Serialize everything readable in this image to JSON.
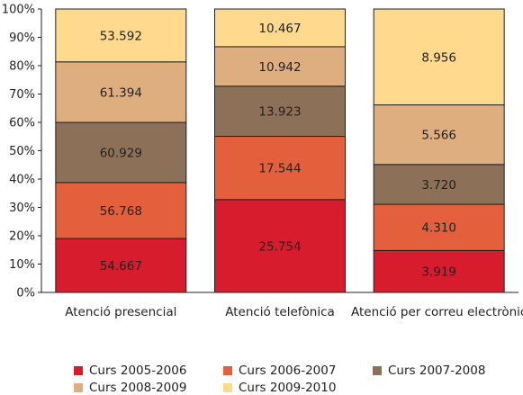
{
  "chart_data": {
    "type": "bar",
    "stacked": "percent",
    "categories": [
      "Atenció presencial",
      "Atenció telefònica",
      "Atenció per correu electrònic"
    ],
    "series": [
      {
        "name": "Curs 2005-2006",
        "color": "#d71c2e",
        "values": [
          54667,
          25754,
          3919
        ],
        "labels": [
          "54.667",
          "25.754",
          "3.919"
        ]
      },
      {
        "name": "Curs 2006-2007",
        "color": "#e4603c",
        "values": [
          56768,
          17544,
          4310
        ],
        "labels": [
          "56.768",
          "17.544",
          "4.310"
        ]
      },
      {
        "name": "Curs 2007-2008",
        "color": "#8d7058",
        "values": [
          60929,
          13923,
          3720
        ],
        "labels": [
          "60.929",
          "13.923",
          "3.720"
        ]
      },
      {
        "name": "Curs 2008-2009",
        "color": "#dfae7e",
        "values": [
          61394,
          10942,
          5566
        ],
        "labels": [
          "61.394",
          "10.942",
          "5.566"
        ]
      },
      {
        "name": "Curs 2009-2010",
        "color": "#fed98e",
        "values": [
          53592,
          10467,
          8956
        ],
        "labels": [
          "53.592",
          "10.467",
          "8.956"
        ]
      }
    ],
    "yticks": [
      "0%",
      "10%",
      "20%",
      "30%",
      "40%",
      "50%",
      "60%",
      "70%",
      "80%",
      "90%",
      "100%"
    ],
    "ylim": [
      0,
      100
    ],
    "legend_position": "bottom",
    "grid": false
  }
}
